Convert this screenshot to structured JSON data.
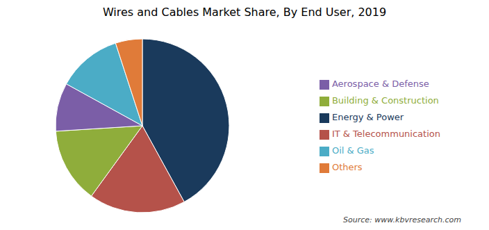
{
  "chart_data": {
    "type": "pie",
    "title": "Wires and Cables Market Share, By End User, 2019",
    "annotations": [
      "Source: www.kbvresearch.com"
    ],
    "categories": [
      "Energy & Power",
      "IT & Telecommunication",
      "Building & Construction",
      "Aerospace & Defense",
      "Oil & Gas",
      "Others"
    ],
    "values": [
      42,
      18,
      14,
      9,
      12,
      5
    ],
    "colors": [
      "#1a3a5c",
      "#b5524a",
      "#8fad3b",
      "#7b5ea7",
      "#4bacc6",
      "#e07b39"
    ],
    "legend": "right"
  }
}
